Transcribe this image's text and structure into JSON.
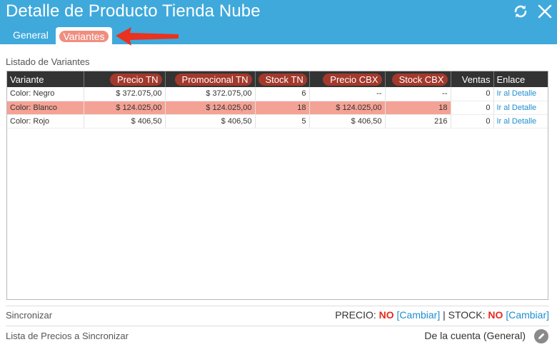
{
  "header": {
    "title": "Detalle de Producto Tienda Nube",
    "icons": [
      "refresh-icon",
      "close-icon"
    ],
    "color": "#3fa9dc"
  },
  "tabs": [
    {
      "label": "General"
    },
    {
      "label": "Variantes",
      "active": true
    }
  ],
  "variants": {
    "section_label": "Listado de Variantes",
    "columns": [
      "Variante",
      "Precio TN",
      "Promocional TN",
      "Stock TN",
      "Precio CBX",
      "Stock CBX",
      "Ventas",
      "Enlace"
    ],
    "rows": [
      {
        "variante": "Color: Negro",
        "precio_tn": "$ 372.075,00",
        "promocional_tn": "$ 372.075,00",
        "stock_tn": "6",
        "precio_cbx": "--",
        "stock_cbx": "--",
        "ventas": "0",
        "enlace": "Ir al Detalle"
      },
      {
        "variante": "Color: Blanco",
        "precio_tn": "$ 124.025,00",
        "promocional_tn": "$ 124.025,00",
        "stock_tn": "18",
        "precio_cbx": "$ 124.025,00",
        "stock_cbx": "18",
        "ventas": "0",
        "enlace": "Ir al Detalle"
      },
      {
        "variante": "Color: Rojo",
        "precio_tn": "$ 406,50",
        "promocional_tn": "$ 406,50",
        "stock_tn": "5",
        "precio_cbx": "$ 406,50",
        "stock_cbx": "216",
        "ventas": "0",
        "enlace": "Ir al Detalle"
      }
    ]
  },
  "sync": {
    "label": "Sincronizar",
    "precio_label": "PRECIO:",
    "precio_value": "NO",
    "change_label": "[Cambiar]",
    "divider": "|",
    "stock_label": "STOCK:",
    "stock_value": "NO"
  },
  "price_list": {
    "label": "Lista de Precios a Sincronizar",
    "value": "De la cuenta (General)",
    "icon": "pencil-icon"
  },
  "colors": {
    "header": "#3fa9dc",
    "highlight": "#ef8e80",
    "annotation_arrow": "#e9321f",
    "no_value": "#e52b1c",
    "link": "#1e8fd0"
  }
}
